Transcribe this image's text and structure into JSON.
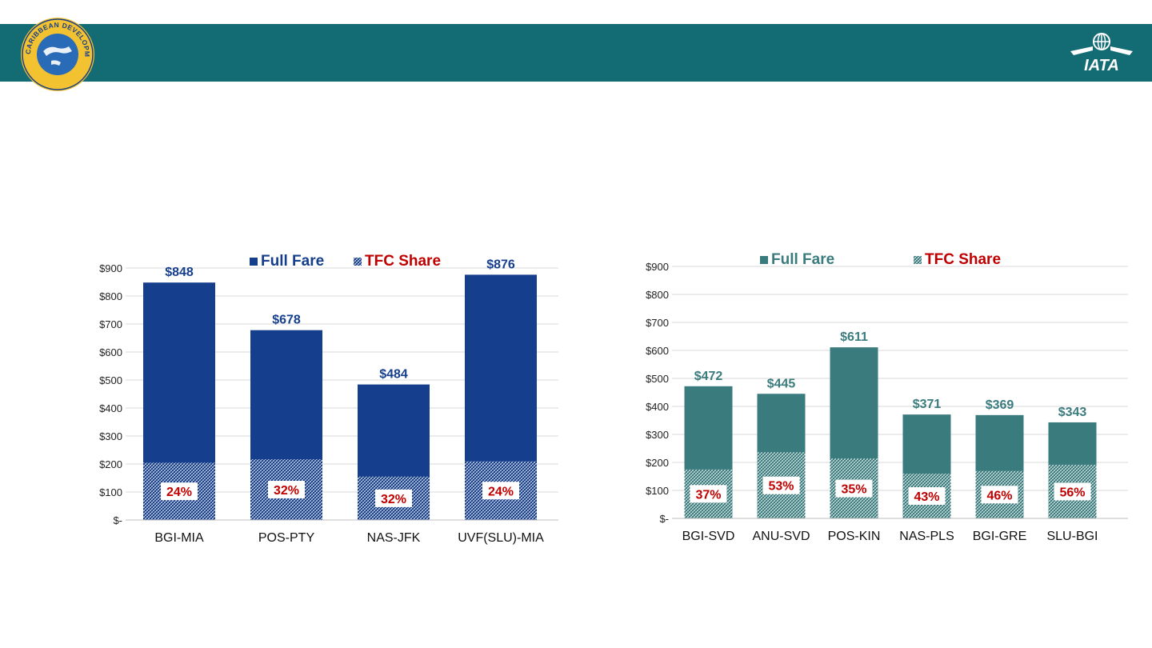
{
  "header": {
    "left_logo_text": "CARIBBEAN DEVELOPMENT BANK",
    "right_logo_text": "IATA",
    "bar_color": "#136b74"
  },
  "chart_data": [
    {
      "type": "bar",
      "stacked_overlay": true,
      "categories": [
        "BGI-MIA",
        "POS-PTY",
        "NAS-JFK",
        "UVF(SLU)-MIA"
      ],
      "series": [
        {
          "name": "Full Fare",
          "values": [
            848,
            678,
            484,
            876
          ],
          "color": "#153e8c"
        },
        {
          "name": "TFC Share",
          "values": [
            205,
            217,
            155,
            210
          ],
          "color": "#153e8c",
          "pattern": "hatched"
        }
      ],
      "value_labels": [
        "$848",
        "$678",
        "$484",
        "$876"
      ],
      "share_labels": [
        "24%",
        "32%",
        "32%",
        "24%"
      ],
      "yticks": [
        "$-",
        "$100",
        "$200",
        "$300",
        "$400",
        "$500",
        "$600",
        "$700",
        "$800",
        "$900"
      ],
      "ylim": [
        0,
        900
      ],
      "legend_position": "top-center",
      "legend_text_colors": [
        "#153e8c",
        "#c00000"
      ],
      "grid": true
    },
    {
      "type": "bar",
      "stacked_overlay": true,
      "categories": [
        "BGI-SVD",
        "ANU-SVD",
        "POS-KIN",
        "NAS-PLS",
        "BGI-GRE",
        "SLU-BGI"
      ],
      "series": [
        {
          "name": "Full Fare",
          "values": [
            472,
            445,
            611,
            371,
            369,
            343
          ],
          "color": "#3a7b7d"
        },
        {
          "name": "TFC Share",
          "values": [
            175,
            236,
            214,
            160,
            170,
            192
          ],
          "color": "#3a7b7d",
          "pattern": "hatched"
        }
      ],
      "value_labels": [
        "$472",
        "$445",
        "$611",
        "$371",
        "$369",
        "$343"
      ],
      "share_labels": [
        "37%",
        "53%",
        "35%",
        "43%",
        "46%",
        "56%"
      ],
      "yticks": [
        "$-",
        "$100",
        "$200",
        "$300",
        "$400",
        "$500",
        "$600",
        "$700",
        "$800",
        "$900"
      ],
      "ylim": [
        0,
        900
      ],
      "legend_position": "top-center",
      "legend_text_colors": [
        "#3a7b7d",
        "#c00000"
      ],
      "grid": true
    }
  ]
}
